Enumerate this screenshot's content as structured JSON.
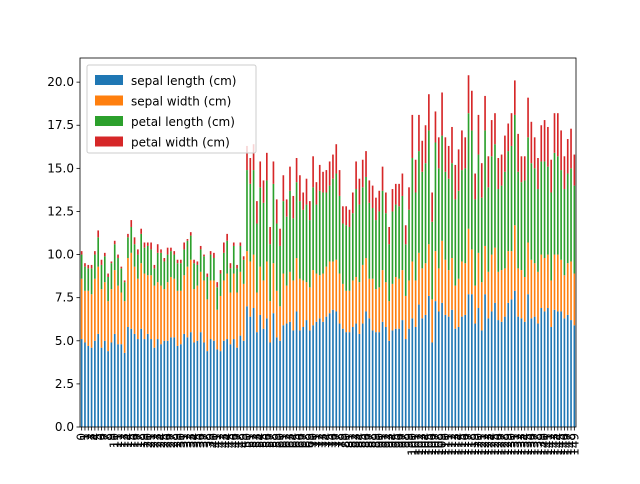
{
  "chart_data": {
    "type": "bar",
    "stacked": true,
    "title": "",
    "xlabel": "",
    "ylabel": "",
    "ylim": [
      0,
      21.4
    ],
    "yticks": [
      0.0,
      2.5,
      5.0,
      7.5,
      10.0,
      12.5,
      15.0,
      17.5,
      20.0
    ],
    "ytick_labels": [
      "0.0",
      "2.5",
      "5.0",
      "7.5",
      "10.0",
      "12.5",
      "15.0",
      "17.5",
      "20.0"
    ],
    "grid": false,
    "legend_position": "top-left",
    "categories": [
      "0",
      "1",
      "2",
      "3",
      "4",
      "5",
      "6",
      "7",
      "8",
      "9",
      "10",
      "11",
      "12",
      "13",
      "14",
      "15",
      "16",
      "17",
      "18",
      "19",
      "20",
      "21",
      "22",
      "23",
      "24",
      "25",
      "26",
      "27",
      "28",
      "29",
      "30",
      "31",
      "32",
      "33",
      "34",
      "35",
      "36",
      "37",
      "38",
      "39",
      "40",
      "41",
      "42",
      "43",
      "44",
      "45",
      "46",
      "47",
      "48",
      "49",
      "50",
      "51",
      "52",
      "53",
      "54",
      "55",
      "56",
      "57",
      "58",
      "59",
      "60",
      "61",
      "62",
      "63",
      "64",
      "65",
      "66",
      "67",
      "68",
      "69",
      "70",
      "71",
      "72",
      "73",
      "74",
      "75",
      "76",
      "77",
      "78",
      "79",
      "80",
      "81",
      "82",
      "83",
      "84",
      "85",
      "86",
      "87",
      "88",
      "89",
      "90",
      "91",
      "92",
      "93",
      "94",
      "95",
      "96",
      "97",
      "98",
      "99",
      "100",
      "101",
      "102",
      "103",
      "104",
      "105",
      "106",
      "107",
      "108",
      "109",
      "110",
      "111",
      "112",
      "113",
      "114",
      "115",
      "116",
      "117",
      "118",
      "119",
      "120",
      "121",
      "122",
      "123",
      "124",
      "125",
      "126",
      "127",
      "128",
      "129",
      "130",
      "131",
      "132",
      "133",
      "134",
      "135",
      "136",
      "137",
      "138",
      "139",
      "140",
      "141",
      "142",
      "143",
      "144",
      "145",
      "146",
      "147",
      "148",
      "149"
    ],
    "series": [
      {
        "name": "sepal length (cm)",
        "color": "#1f77b4",
        "values": [
          5.1,
          4.9,
          4.7,
          4.6,
          5.0,
          5.4,
          4.6,
          5.0,
          4.4,
          4.9,
          5.4,
          4.8,
          4.8,
          4.3,
          5.8,
          5.7,
          5.4,
          5.1,
          5.7,
          5.1,
          5.4,
          5.1,
          4.6,
          5.1,
          4.8,
          5.0,
          5.0,
          5.2,
          5.2,
          4.7,
          4.8,
          5.4,
          5.2,
          5.5,
          4.9,
          5.0,
          5.5,
          4.9,
          4.4,
          5.1,
          5.0,
          4.5,
          4.4,
          5.0,
          5.1,
          4.8,
          5.1,
          4.6,
          5.3,
          5.0,
          7.0,
          6.4,
          6.9,
          5.5,
          6.5,
          5.7,
          6.3,
          4.9,
          6.6,
          5.2,
          5.0,
          5.9,
          6.0,
          6.1,
          5.6,
          6.7,
          5.6,
          5.8,
          6.2,
          5.6,
          5.9,
          6.1,
          6.3,
          6.1,
          6.4,
          6.6,
          6.8,
          6.7,
          6.0,
          5.7,
          5.5,
          5.5,
          5.8,
          6.0,
          5.4,
          6.0,
          6.7,
          6.3,
          5.6,
          5.5,
          5.5,
          6.1,
          5.8,
          5.0,
          5.6,
          5.7,
          5.7,
          6.2,
          5.1,
          5.7,
          6.3,
          5.8,
          7.1,
          6.3,
          6.5,
          7.6,
          4.9,
          7.3,
          6.7,
          7.2,
          6.5,
          6.4,
          6.8,
          5.7,
          5.8,
          6.4,
          6.5,
          7.7,
          7.7,
          6.0,
          6.9,
          5.6,
          7.7,
          6.3,
          6.7,
          7.2,
          6.2,
          6.1,
          6.4,
          7.2,
          7.4,
          7.9,
          6.4,
          6.3,
          6.1,
          7.7,
          6.3,
          6.4,
          6.0,
          6.9,
          6.7,
          6.9,
          5.8,
          6.8,
          6.7,
          6.7,
          6.3,
          6.5,
          6.2,
          5.9
        ]
      },
      {
        "name": "sepal width (cm)",
        "color": "#ff7f0e",
        "values": [
          3.5,
          3.0,
          3.2,
          3.1,
          3.6,
          3.9,
          3.4,
          3.4,
          2.9,
          3.1,
          3.7,
          3.4,
          3.0,
          3.0,
          4.0,
          4.4,
          3.9,
          3.5,
          3.8,
          3.8,
          3.4,
          3.7,
          3.6,
          3.3,
          3.4,
          3.0,
          3.4,
          3.5,
          3.4,
          3.2,
          3.1,
          3.4,
          4.1,
          4.2,
          3.1,
          3.2,
          3.5,
          3.6,
          3.0,
          3.4,
          3.5,
          2.3,
          3.2,
          3.5,
          3.8,
          3.0,
          3.8,
          3.2,
          3.7,
          3.3,
          3.2,
          3.2,
          3.1,
          2.3,
          2.8,
          2.8,
          3.3,
          2.4,
          2.9,
          2.7,
          2.0,
          3.0,
          2.2,
          2.9,
          2.9,
          3.1,
          3.0,
          2.7,
          2.2,
          2.5,
          3.2,
          2.8,
          2.5,
          2.8,
          2.9,
          3.0,
          2.8,
          3.0,
          2.9,
          2.6,
          2.4,
          2.4,
          2.7,
          2.7,
          3.0,
          3.4,
          3.1,
          2.3,
          3.0,
          2.5,
          2.6,
          3.0,
          2.6,
          2.3,
          2.7,
          3.0,
          2.9,
          2.9,
          2.5,
          2.8,
          3.3,
          2.7,
          3.0,
          2.9,
          3.0,
          3.0,
          2.5,
          2.9,
          2.5,
          3.6,
          3.2,
          2.7,
          3.0,
          2.5,
          2.8,
          3.2,
          3.0,
          3.8,
          2.6,
          2.2,
          3.2,
          2.8,
          2.8,
          2.7,
          3.3,
          3.2,
          2.8,
          3.0,
          2.8,
          3.0,
          2.8,
          3.8,
          2.8,
          2.8,
          2.6,
          3.0,
          3.4,
          3.1,
          3.0,
          3.1,
          3.1,
          3.1,
          2.7,
          3.2,
          3.3,
          3.0,
          2.5,
          3.0,
          3.4,
          3.0
        ]
      },
      {
        "name": "petal length (cm)",
        "color": "#2ca02c",
        "values": [
          1.4,
          1.4,
          1.3,
          1.5,
          1.4,
          1.7,
          1.4,
          1.5,
          1.4,
          1.5,
          1.5,
          1.6,
          1.4,
          1.1,
          1.2,
          1.5,
          1.3,
          1.4,
          1.7,
          1.5,
          1.7,
          1.5,
          1.0,
          1.7,
          1.9,
          1.6,
          1.6,
          1.5,
          1.4,
          1.6,
          1.6,
          1.5,
          1.5,
          1.4,
          1.5,
          1.2,
          1.3,
          1.4,
          1.3,
          1.5,
          1.3,
          1.3,
          1.3,
          1.6,
          1.9,
          1.4,
          1.6,
          1.4,
          1.5,
          1.4,
          4.7,
          4.5,
          4.9,
          4.0,
          4.6,
          4.5,
          4.7,
          3.3,
          4.6,
          3.9,
          3.5,
          4.2,
          4.0,
          4.7,
          3.6,
          4.4,
          4.5,
          4.1,
          4.5,
          3.9,
          4.8,
          4.0,
          4.9,
          4.7,
          4.3,
          4.4,
          4.8,
          5.0,
          4.5,
          3.5,
          3.8,
          3.7,
          3.9,
          5.1,
          4.5,
          4.5,
          4.7,
          4.4,
          4.1,
          4.0,
          4.4,
          4.6,
          4.0,
          3.3,
          4.2,
          4.2,
          4.2,
          4.3,
          3.0,
          4.1,
          6.0,
          5.1,
          5.9,
          5.6,
          5.8,
          6.6,
          4.5,
          6.3,
          5.8,
          6.1,
          5.1,
          5.3,
          5.5,
          5.0,
          5.1,
          5.3,
          5.5,
          6.7,
          6.9,
          5.0,
          5.7,
          4.9,
          6.7,
          4.9,
          5.7,
          6.0,
          4.8,
          4.9,
          5.6,
          5.8,
          6.1,
          6.4,
          5.6,
          5.1,
          5.6,
          6.1,
          5.6,
          5.5,
          4.8,
          5.4,
          5.6,
          5.1,
          5.1,
          5.9,
          5.7,
          5.2,
          5.0,
          5.2,
          5.4,
          5.1
        ]
      },
      {
        "name": "petal width (cm)",
        "color": "#d62728",
        "values": [
          0.2,
          0.2,
          0.2,
          0.2,
          0.2,
          0.4,
          0.3,
          0.2,
          0.2,
          0.1,
          0.2,
          0.2,
          0.1,
          0.1,
          0.2,
          0.4,
          0.4,
          0.3,
          0.3,
          0.3,
          0.2,
          0.4,
          0.2,
          0.5,
          0.2,
          0.2,
          0.4,
          0.2,
          0.2,
          0.2,
          0.2,
          0.4,
          0.1,
          0.2,
          0.2,
          0.2,
          0.2,
          0.1,
          0.2,
          0.2,
          0.3,
          0.3,
          0.2,
          0.6,
          0.4,
          0.3,
          0.2,
          0.2,
          0.2,
          0.2,
          1.4,
          1.5,
          1.5,
          1.3,
          1.5,
          1.3,
          1.6,
          1.0,
          1.3,
          1.4,
          1.0,
          1.5,
          1.0,
          1.4,
          1.3,
          1.4,
          1.5,
          1.0,
          1.5,
          1.1,
          1.8,
          1.3,
          1.5,
          1.2,
          1.3,
          1.4,
          1.4,
          1.7,
          1.5,
          1.0,
          1.1,
          1.0,
          1.2,
          1.6,
          1.5,
          1.6,
          1.5,
          1.3,
          1.3,
          1.3,
          1.2,
          1.4,
          1.2,
          1.0,
          1.3,
          1.2,
          1.3,
          1.3,
          1.1,
          1.3,
          2.5,
          1.9,
          2.1,
          1.8,
          2.2,
          2.1,
          1.7,
          1.8,
          1.8,
          2.5,
          2.0,
          1.9,
          2.1,
          2.0,
          2.4,
          2.3,
          1.8,
          2.2,
          2.3,
          1.5,
          2.3,
          2.0,
          2.0,
          1.8,
          2.1,
          1.8,
          1.8,
          1.8,
          2.1,
          1.6,
          1.9,
          2.0,
          2.2,
          1.5,
          1.4,
          2.3,
          2.4,
          1.8,
          1.8,
          2.1,
          2.4,
          2.3,
          1.9,
          2.3,
          2.5,
          2.3,
          1.9,
          2.0,
          2.3,
          1.8
        ]
      }
    ]
  }
}
